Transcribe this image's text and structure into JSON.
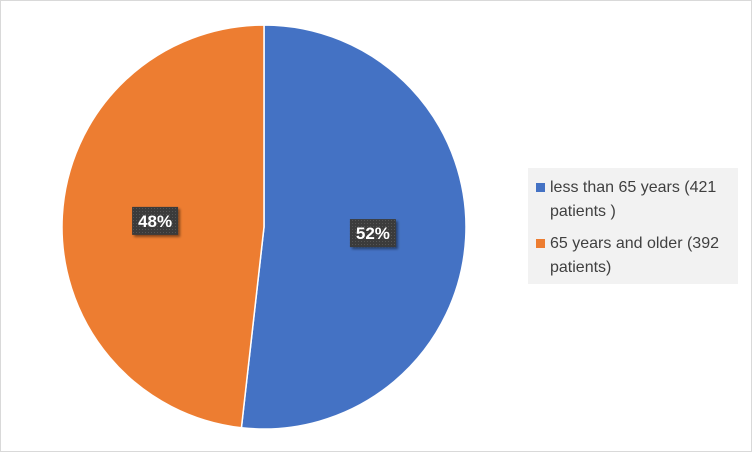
{
  "chart_data": {
    "type": "pie",
    "categories": [
      "less than 65 years (421 patients )",
      "65 years and older (392 patients)"
    ],
    "values": [
      421,
      392
    ],
    "percent_labels": [
      "52%",
      "48%"
    ],
    "colors": [
      "#4472C4",
      "#ED7D31"
    ],
    "legend_position": "right",
    "start_angle_deg": 0,
    "direction": "clockwise"
  },
  "legend": {
    "items": [
      {
        "label": "less than 65 years (421 patients )",
        "color": "#4472C4"
      },
      {
        "label": "65 years and older (392 patients)",
        "color": "#ED7D31"
      }
    ]
  }
}
